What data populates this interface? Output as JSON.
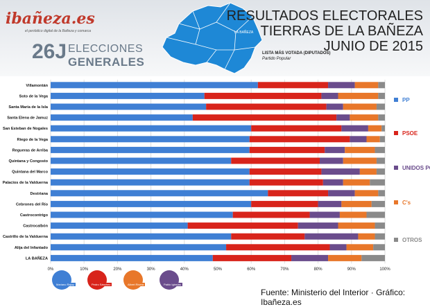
{
  "header": {
    "logo": "ibañeza.es",
    "logo_sub": "el periódico digital de la Bañeza y comarca",
    "election_number": "26J",
    "election_line1": "ELECCIONES",
    "election_line2": "GENERALES",
    "title_lines": [
      "RESULTADOS ELECTORALES",
      "TIERRAS DE LA BAÑEZA",
      "JUNIO DE 2015"
    ],
    "lista_label": "LISTA MÁS VOTADA (DIPUTADOS)",
    "lista_value": "Partido Popular"
  },
  "map": {
    "fill": "#1e88d6",
    "label_visible": "LA BAÑEZA"
  },
  "legend": [
    {
      "name": "PP",
      "color": "#3f7fd4"
    },
    {
      "name": "PSOE",
      "color": "#d8241b"
    },
    {
      "name": "UNIDOS PODEMOS",
      "color": "#6a4c8c"
    },
    {
      "name": "C's",
      "color": "#e8772a"
    },
    {
      "name": "OTROS",
      "color": "#8a8a8a"
    }
  ],
  "candidates": [
    "Mariano Rajoy",
    "Pedro Sánchez",
    "Albert Rivera",
    "Pablo Iglesias"
  ],
  "source": "Fuente: Ministerio del Interior · Gráfico: Ibañeza.es",
  "chart_data": {
    "type": "bar",
    "orientation": "horizontal",
    "stacked": "percent",
    "xlim": [
      0,
      100
    ],
    "xticks": [
      "0%",
      "10%",
      "20%",
      "30%",
      "40%",
      "50%",
      "60%",
      "70%",
      "80%",
      "90%",
      "100%"
    ],
    "categories": [
      "Villamontán",
      "Soto de la Vega",
      "Santa María de la Isla",
      "Santa Elena de Jamuz",
      "San Esteban de Nogales",
      "Riego de la Vega",
      "Regueras de Arriba",
      "Quintana y Congosto",
      "Quintana del Marco",
      "Palacios de la Valduerna",
      "Destriana",
      "Cebrones del Río",
      "Castrocontrigo",
      "Castrocalbón",
      "Castrillo de la Valduerna",
      "Alija del Infantado",
      "LA BAÑEZA"
    ],
    "series": [
      {
        "name": "PP",
        "values": [
          62,
          46,
          46.5,
          42.5,
          60,
          59.5,
          59.5,
          54,
          59.5,
          59.5,
          65,
          60,
          54.5,
          41,
          54,
          52.5,
          48.5
        ]
      },
      {
        "name": "PSOE",
        "values": [
          21,
          35,
          36,
          43,
          27,
          30,
          22.5,
          26.5,
          21.5,
          22,
          18,
          20,
          23,
          33,
          22,
          31,
          23.5
        ]
      },
      {
        "name": "UNIDOS PODEMOS",
        "values": [
          8,
          5,
          5,
          4,
          8,
          5,
          6,
          7,
          11.5,
          6,
          8,
          7,
          9,
          12,
          16,
          5,
          11
        ]
      },
      {
        "name": "C's",
        "values": [
          7,
          12,
          10,
          8.5,
          4,
          4,
          9,
          10,
          5,
          8,
          7,
          9,
          8,
          11,
          5,
          8,
          10
        ]
      },
      {
        "name": "OTROS",
        "values": [
          2,
          2,
          2.5,
          2,
          1,
          1.5,
          3,
          2.5,
          2.5,
          4.5,
          2,
          4,
          5.5,
          3,
          3,
          3.5,
          7
        ]
      }
    ]
  }
}
